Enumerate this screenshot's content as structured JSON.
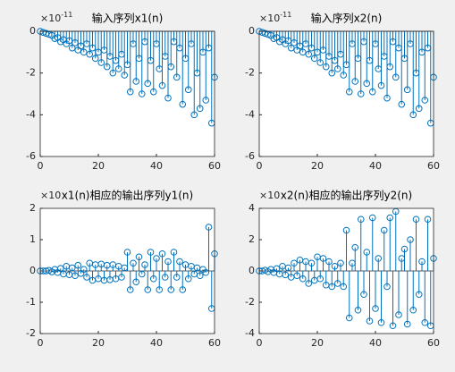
{
  "chart_data": [
    {
      "type": "stem",
      "title": "输入序列x1(n)",
      "y_multiplier": "×10",
      "y_exponent": "-11",
      "color": "#0072bd",
      "x": [
        0,
        1,
        2,
        3,
        4,
        5,
        6,
        7,
        8,
        9,
        10,
        11,
        12,
        13,
        14,
        15,
        16,
        17,
        18,
        19,
        20,
        21,
        22,
        23,
        24,
        25,
        26,
        27,
        28,
        29,
        30,
        31,
        32,
        33,
        34,
        35,
        36,
        37,
        38,
        39,
        40,
        41,
        42,
        43,
        44,
        45,
        46,
        47,
        48,
        49,
        50,
        51,
        52,
        53,
        54,
        55,
        56,
        57,
        58,
        59,
        60
      ],
      "values": [
        0,
        -0.05,
        -0.1,
        -0.15,
        -0.2,
        -0.35,
        -0.3,
        -0.5,
        -0.4,
        -0.6,
        -0.45,
        -0.8,
        -0.55,
        -0.9,
        -0.7,
        -1.0,
        -0.6,
        -1.1,
        -0.8,
        -1.3,
        -1.0,
        -1.5,
        -0.9,
        -1.7,
        -1.2,
        -2.0,
        -1.4,
        -1.8,
        -1.1,
        -2.1,
        -1.6,
        -2.9,
        -0.6,
        -2.4,
        -1.3,
        -3.0,
        -0.5,
        -2.5,
        -1.4,
        -2.9,
        -0.6,
        -1.8,
        -2.6,
        -1.2,
        -3.2,
        -1.7,
        -0.5,
        -2.2,
        -0.8,
        -3.5,
        -1.3,
        -2.8,
        -0.6,
        -4.0,
        -2.0,
        -3.7,
        -1.0,
        -3.3,
        -0.8,
        -4.4,
        -2.2
      ],
      "xlim": [
        0,
        60
      ],
      "xticks": [
        0,
        20,
        40,
        60
      ],
      "ylim": [
        -6,
        0
      ],
      "yticks": [
        -6,
        -4,
        -2,
        0
      ]
    },
    {
      "type": "stem",
      "title": "输入序列x2(n)",
      "y_multiplier": "×10",
      "y_exponent": "-11",
      "color": "#0072bd",
      "x": [
        0,
        1,
        2,
        3,
        4,
        5,
        6,
        7,
        8,
        9,
        10,
        11,
        12,
        13,
        14,
        15,
        16,
        17,
        18,
        19,
        20,
        21,
        22,
        23,
        24,
        25,
        26,
        27,
        28,
        29,
        30,
        31,
        32,
        33,
        34,
        35,
        36,
        37,
        38,
        39,
        40,
        41,
        42,
        43,
        44,
        45,
        46,
        47,
        48,
        49,
        50,
        51,
        52,
        53,
        54,
        55,
        56,
        57,
        58,
        59,
        60
      ],
      "values": [
        0,
        -0.05,
        -0.1,
        -0.15,
        -0.2,
        -0.35,
        -0.3,
        -0.5,
        -0.4,
        -0.6,
        -0.45,
        -0.8,
        -0.55,
        -0.9,
        -0.7,
        -1.0,
        -0.6,
        -1.1,
        -0.8,
        -1.3,
        -1.0,
        -1.5,
        -0.9,
        -1.7,
        -1.2,
        -2.0,
        -1.4,
        -1.8,
        -1.1,
        -2.1,
        -1.6,
        -2.9,
        -0.6,
        -2.4,
        -1.3,
        -3.0,
        -0.5,
        -2.5,
        -1.4,
        -2.9,
        -0.6,
        -1.8,
        -2.6,
        -1.2,
        -3.2,
        -1.7,
        -0.5,
        -2.2,
        -0.8,
        -3.5,
        -1.3,
        -2.8,
        -0.6,
        -4.0,
        -2.0,
        -3.7,
        -1.0,
        -3.3,
        -0.8,
        -4.4,
        -2.2
      ],
      "xlim": [
        0,
        60
      ],
      "xticks": [
        0,
        20,
        40,
        60
      ],
      "ylim": [
        -6,
        0
      ],
      "yticks": [
        -6,
        -4,
        -2,
        0
      ]
    },
    {
      "type": "stem",
      "title": "x1(n)相应的输出序列y1(n)",
      "y_multiplier": "×10",
      "color": "#0072bd",
      "x": [
        0,
        1,
        2,
        3,
        4,
        5,
        6,
        7,
        8,
        9,
        10,
        11,
        12,
        13,
        14,
        15,
        16,
        17,
        18,
        19,
        20,
        21,
        22,
        23,
        24,
        25,
        26,
        27,
        28,
        29,
        30,
        31,
        32,
        33,
        34,
        35,
        36,
        37,
        38,
        39,
        40,
        41,
        42,
        43,
        44,
        45,
        46,
        47,
        48,
        49,
        50,
        51,
        52,
        53,
        54,
        55,
        56,
        57,
        58,
        59,
        60
      ],
      "values": [
        0,
        0,
        0,
        0.02,
        -0.03,
        0.05,
        -0.05,
        0.08,
        -0.1,
        0.15,
        -0.12,
        0.1,
        -0.15,
        0.18,
        -0.08,
        0.05,
        -0.2,
        0.25,
        -0.3,
        0.2,
        -0.25,
        0.22,
        -0.3,
        0.18,
        -0.28,
        0.2,
        -0.25,
        0.15,
        -0.2,
        0.1,
        0.6,
        -0.6,
        0.25,
        -0.35,
        0.45,
        -0.1,
        0.2,
        -0.6,
        0.6,
        -0.25,
        0.4,
        -0.6,
        0.55,
        -0.2,
        0.3,
        -0.6,
        0.6,
        -0.2,
        0.3,
        -0.6,
        0.2,
        -0.25,
        0.15,
        -0.1,
        0.1,
        -0.15,
        0.05,
        -0.05,
        1.4,
        -1.2,
        0.55
      ],
      "xlim": [
        0,
        60
      ],
      "xticks": [
        0,
        20,
        40,
        60
      ],
      "ylim": [
        -2,
        2
      ],
      "yticks": [
        -2,
        -1,
        0,
        1,
        2
      ]
    },
    {
      "type": "stem",
      "title": "x2(n)相应的输出序列y2(n)",
      "y_multiplier": "×10",
      "color": "#0072bd",
      "x": [
        0,
        1,
        2,
        3,
        4,
        5,
        6,
        7,
        8,
        9,
        10,
        11,
        12,
        13,
        14,
        15,
        16,
        17,
        18,
        19,
        20,
        21,
        22,
        23,
        24,
        25,
        26,
        27,
        28,
        29,
        30,
        31,
        32,
        33,
        34,
        35,
        36,
        37,
        38,
        39,
        40,
        41,
        42,
        43,
        44,
        45,
        46,
        47,
        48,
        49,
        50,
        51,
        52,
        53,
        54,
        55,
        56,
        57,
        58,
        59,
        60
      ],
      "values": [
        0,
        0,
        0.05,
        -0.05,
        0.1,
        -0.1,
        0.15,
        -0.2,
        0.3,
        -0.25,
        0.2,
        -0.4,
        0.5,
        -0.3,
        0.7,
        -0.5,
        0.6,
        -0.8,
        0.5,
        -0.6,
        0.9,
        -0.5,
        0.8,
        -0.9,
        0.6,
        -1.0,
        0.3,
        -0.8,
        0.5,
        -1.0,
        2.6,
        -3.0,
        0.5,
        1.5,
        -2.5,
        3.3,
        -1.5,
        1.2,
        -3.2,
        3.4,
        -2.4,
        0.8,
        -3.3,
        2.6,
        -1.0,
        3.4,
        -3.5,
        3.8,
        -2.8,
        0.8,
        1.4,
        -3.4,
        2.0,
        -2.5,
        3.3,
        -1.5,
        0.6,
        -3.3,
        3.3,
        -3.5,
        0.8
      ],
      "xlim": [
        0,
        60
      ],
      "xticks": [
        0,
        20,
        40,
        60
      ],
      "ylim": [
        -4,
        4
      ],
      "yticks": [
        -4,
        -2,
        0,
        2,
        4
      ]
    }
  ]
}
